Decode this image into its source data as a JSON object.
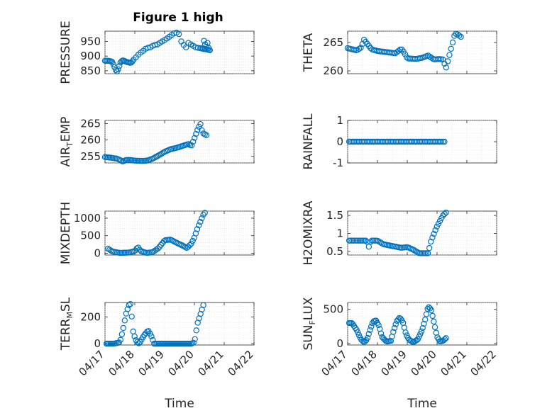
{
  "figure_title": "Figure 1 high",
  "series_color": "#0072BD",
  "chart_data": [
    {
      "type": "scatter",
      "ylabel": "PRESSURE",
      "ylim": [
        840,
        985
      ],
      "xlim": [
        0,
        5
      ],
      "yticks": [
        850,
        900,
        950
      ],
      "xtick_labels_visible": false,
      "x": [
        0,
        0.05,
        0.1,
        0.15,
        0.2,
        0.25,
        0.3,
        0.35,
        0.4,
        0.45,
        0.5,
        0.55,
        0.6,
        0.65,
        0.7,
        0.75,
        0.8,
        0.85,
        0.9,
        0.95,
        1.0,
        1.05,
        1.1,
        1.15,
        1.2,
        1.3,
        1.4,
        1.5,
        1.6,
        1.7,
        1.8,
        1.9,
        2.0,
        2.1,
        2.2,
        2.3,
        2.4,
        2.5,
        2.6,
        2.7,
        2.8,
        2.9,
        3.0,
        3.1,
        3.2,
        3.3,
        3.4,
        3.5,
        3.6,
        3.7,
        3.8,
        3.9,
        4.0,
        4.05,
        4.1,
        4.15,
        4.2,
        4.25,
        4.3,
        4.35,
        4.4
      ],
      "y": [
        884,
        884,
        884,
        884,
        883,
        882,
        880,
        872,
        862,
        852,
        848,
        855,
        866,
        878,
        883,
        885,
        884,
        882,
        880,
        879,
        878,
        877,
        878,
        882,
        888,
        896,
        905,
        912,
        918,
        925,
        928,
        930,
        935,
        938,
        940,
        945,
        950,
        955,
        960,
        966,
        972,
        978,
        980,
        975,
        950,
        938,
        930,
        945,
        940,
        935,
        930,
        928,
        927,
        926,
        925,
        924,
        924,
        923,
        922,
        921,
        920
      ],
      "tail_points": [
        [
          4.15,
          952
        ],
        [
          4.2,
          940
        ],
        [
          4.25,
          932
        ],
        [
          4.3,
          945
        ],
        [
          4.35,
          928
        ]
      ]
    },
    {
      "type": "scatter",
      "ylabel": "THETA",
      "ylim": [
        259.5,
        267
      ],
      "xlim": [
        0,
        5
      ],
      "yticks": [
        260,
        265
      ],
      "xtick_labels_visible": false
    },
    {
      "type": "scatter",
      "ylabel": "AIR_TEMP",
      "ylabel_main": "AIR",
      "ylabel_sub": "T",
      "ylabel_tail": "EMP",
      "ylim": [
        253,
        266
      ],
      "xlim": [
        0,
        5
      ],
      "yticks": [
        255,
        260,
        265
      ],
      "xtick_labels_visible": false
    },
    {
      "type": "scatter",
      "ylabel": "RAINFALL",
      "ylim": [
        -1,
        1
      ],
      "xlim": [
        0,
        5
      ],
      "yticks": [
        -1,
        0,
        1
      ],
      "xtick_labels_visible": false
    },
    {
      "type": "scatter",
      "ylabel": "MIXDEPTH",
      "ylim": [
        -50,
        1200
      ],
      "xlim": [
        0,
        5
      ],
      "yticks": [
        0,
        500,
        1000
      ],
      "xtick_labels_visible": false
    },
    {
      "type": "scatter",
      "ylabel": "H2OMIXRA",
      "ylim": [
        0.4,
        1.62
      ],
      "xlim": [
        0,
        5
      ],
      "yticks": [
        0.5,
        1,
        1.5
      ],
      "xtick_labels_visible": false
    },
    {
      "type": "scatter",
      "ylabel": "TERR_MSL",
      "ylabel_main": "TERR",
      "ylabel_sub": "M",
      "ylabel_tail": "SL",
      "ylim": [
        -10,
        310
      ],
      "xlim": [
        0,
        5
      ],
      "yticks": [
        0,
        200
      ],
      "xlabel": "Time",
      "xtick_labels": [
        "04/17",
        "04/18",
        "04/19",
        "04/20",
        "04/21",
        "04/22"
      ]
    },
    {
      "type": "scatter",
      "ylabel": "SUN_FLUX",
      "ylabel_main": "SUN",
      "ylabel_sub": "F",
      "ylabel_tail": "LUX",
      "ylim": [
        -20,
        600
      ],
      "xlim": [
        0,
        5
      ],
      "yticks": [
        0,
        500
      ],
      "xlabel": "Time",
      "xtick_labels": [
        "04/17",
        "04/18",
        "04/19",
        "04/20",
        "04/21",
        "04/22"
      ]
    }
  ]
}
